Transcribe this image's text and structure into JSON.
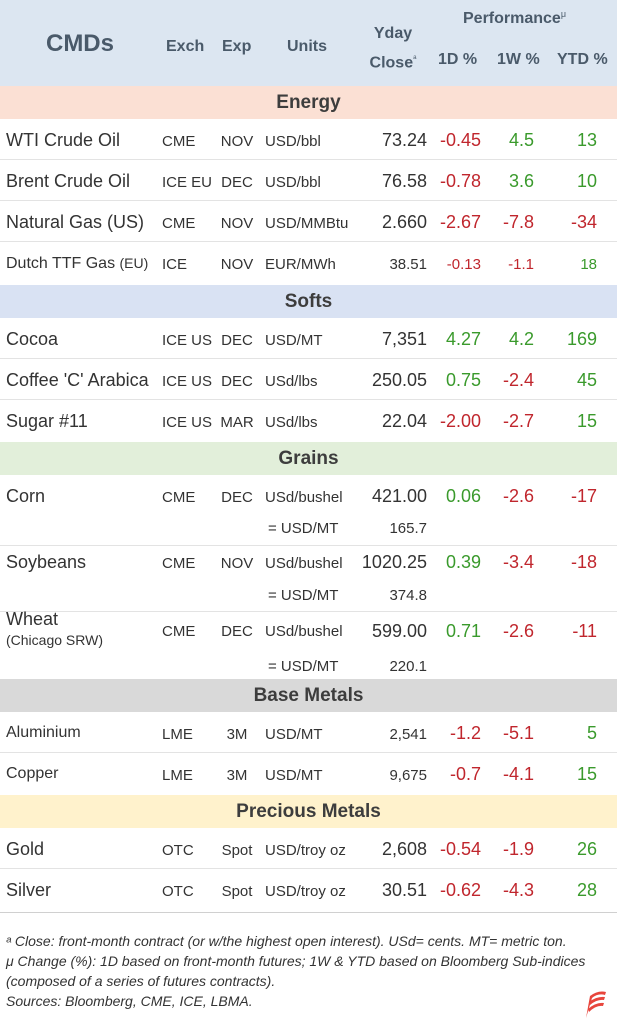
{
  "header": {
    "cmds": "CMDs",
    "exch": "Exch",
    "exp": "Exp",
    "units": "Units",
    "yday_line1": "Yday",
    "yday_line2": "Close",
    "yday_mark": "ᵃ",
    "performance": "Performance",
    "performance_mark": "μ",
    "d1": "1D %",
    "w1": "1W %",
    "ytd": "YTD %"
  },
  "sections": {
    "energy": "Energy",
    "softs": "Softs",
    "grains": "Grains",
    "base": "Base Metals",
    "precious": "Precious Metals"
  },
  "rows": {
    "wti": {
      "name": "WTI Crude Oil",
      "exch": "CME",
      "exp": "NOV",
      "units": "USD/bbl",
      "close": "73.24",
      "d1": "-0.45",
      "w1": "4.5",
      "ytd": "13"
    },
    "brent": {
      "name": "Brent Crude Oil",
      "exch": "ICE EU",
      "exp": "DEC",
      "units": "USD/bbl",
      "close": "76.58",
      "d1": "-0.78",
      "w1": "3.6",
      "ytd": "10"
    },
    "natgas": {
      "name": "Natural Gas (US)",
      "exch": "CME",
      "exp": "NOV",
      "units": "USD/MMBtu",
      "close": "2.660",
      "d1": "-2.67",
      "w1": "-7.8",
      "ytd": "-34"
    },
    "ttf": {
      "name": "Dutch TTF Gas",
      "name_suffix": "(EU)",
      "exch": "ICE",
      "exp": "NOV",
      "units": "EUR/MWh",
      "close": "38.51",
      "d1": "-0.13",
      "w1": "-1.1",
      "ytd": "18"
    },
    "cocoa": {
      "name": "Cocoa",
      "exch": "ICE US",
      "exp": "DEC",
      "units": "USD/MT",
      "close": "7,351",
      "d1": "4.27",
      "w1": "4.2",
      "ytd": "169"
    },
    "coffee": {
      "name": "Coffee 'C' Arabica",
      "exch": "ICE US",
      "exp": "DEC",
      "units": "USd/lbs",
      "close": "250.05",
      "d1": "0.75",
      "w1": "-2.4",
      "ytd": "45"
    },
    "sugar": {
      "name": "Sugar #11",
      "exch": "ICE US",
      "exp": "MAR",
      "units": "USd/lbs",
      "close": "22.04",
      "d1": "-2.00",
      "w1": "-2.7",
      "ytd": "15"
    },
    "corn": {
      "name": "Corn",
      "exch": "CME",
      "exp": "DEC",
      "units": "USd/bushel",
      "close": "421.00",
      "d1": "0.06",
      "w1": "-2.6",
      "ytd": "-17",
      "conv_label": "= USD/MT",
      "conv_value": "165.7"
    },
    "soy": {
      "name": "Soybeans",
      "exch": "CME",
      "exp": "NOV",
      "units": "USd/bushel",
      "close": "1020.25",
      "d1": "0.39",
      "w1": "-3.4",
      "ytd": "-18",
      "conv_label": "= USD/MT",
      "conv_value": "374.8"
    },
    "wheat": {
      "name": "Wheat",
      "name_sub": "(Chicago SRW)",
      "exch": "CME",
      "exp": "DEC",
      "units": "USd/bushel",
      "close": "599.00",
      "d1": "0.71",
      "w1": "-2.6",
      "ytd": "-11",
      "conv_label": "= USD/MT",
      "conv_value": "220.1"
    },
    "alu": {
      "name": "Aluminium",
      "exch": "LME",
      "exp": "3M",
      "units": "USD/MT",
      "close": "2,541",
      "d1": "-1.2",
      "w1": "-5.1",
      "ytd": "5"
    },
    "copper": {
      "name": "Copper",
      "exch": "LME",
      "exp": "3M",
      "units": "USD/MT",
      "close": "9,675",
      "d1": "-0.7",
      "w1": "-4.1",
      "ytd": "15"
    },
    "gold": {
      "name": "Gold",
      "exch": "OTC",
      "exp": "Spot",
      "units": "USD/troy oz",
      "close": "2,608",
      "d1": "-0.54",
      "w1": "-1.9",
      "ytd": "26"
    },
    "silver": {
      "name": "Silver",
      "exch": "OTC",
      "exp": "Spot",
      "units": "USD/troy oz",
      "close": "30.51",
      "d1": "-0.62",
      "w1": "-4.3",
      "ytd": "28"
    }
  },
  "notes": {
    "n1": "ᵃ Close: front-month contract (or w/the highest open interest). USd= cents. MT= metric ton.",
    "n2": "μ Change (%): 1D based on front-month futures; 1W & YTD based on Bloomberg Sub-indices (composed of a series of futures contracts).",
    "n3": "Sources: Bloomberg, CME, ICE, LBMA."
  },
  "colors": {
    "positive": "#3a9a2c",
    "negative": "#c0262d",
    "logo": "#e8453c"
  },
  "logo_icon": "flag-logo-icon"
}
